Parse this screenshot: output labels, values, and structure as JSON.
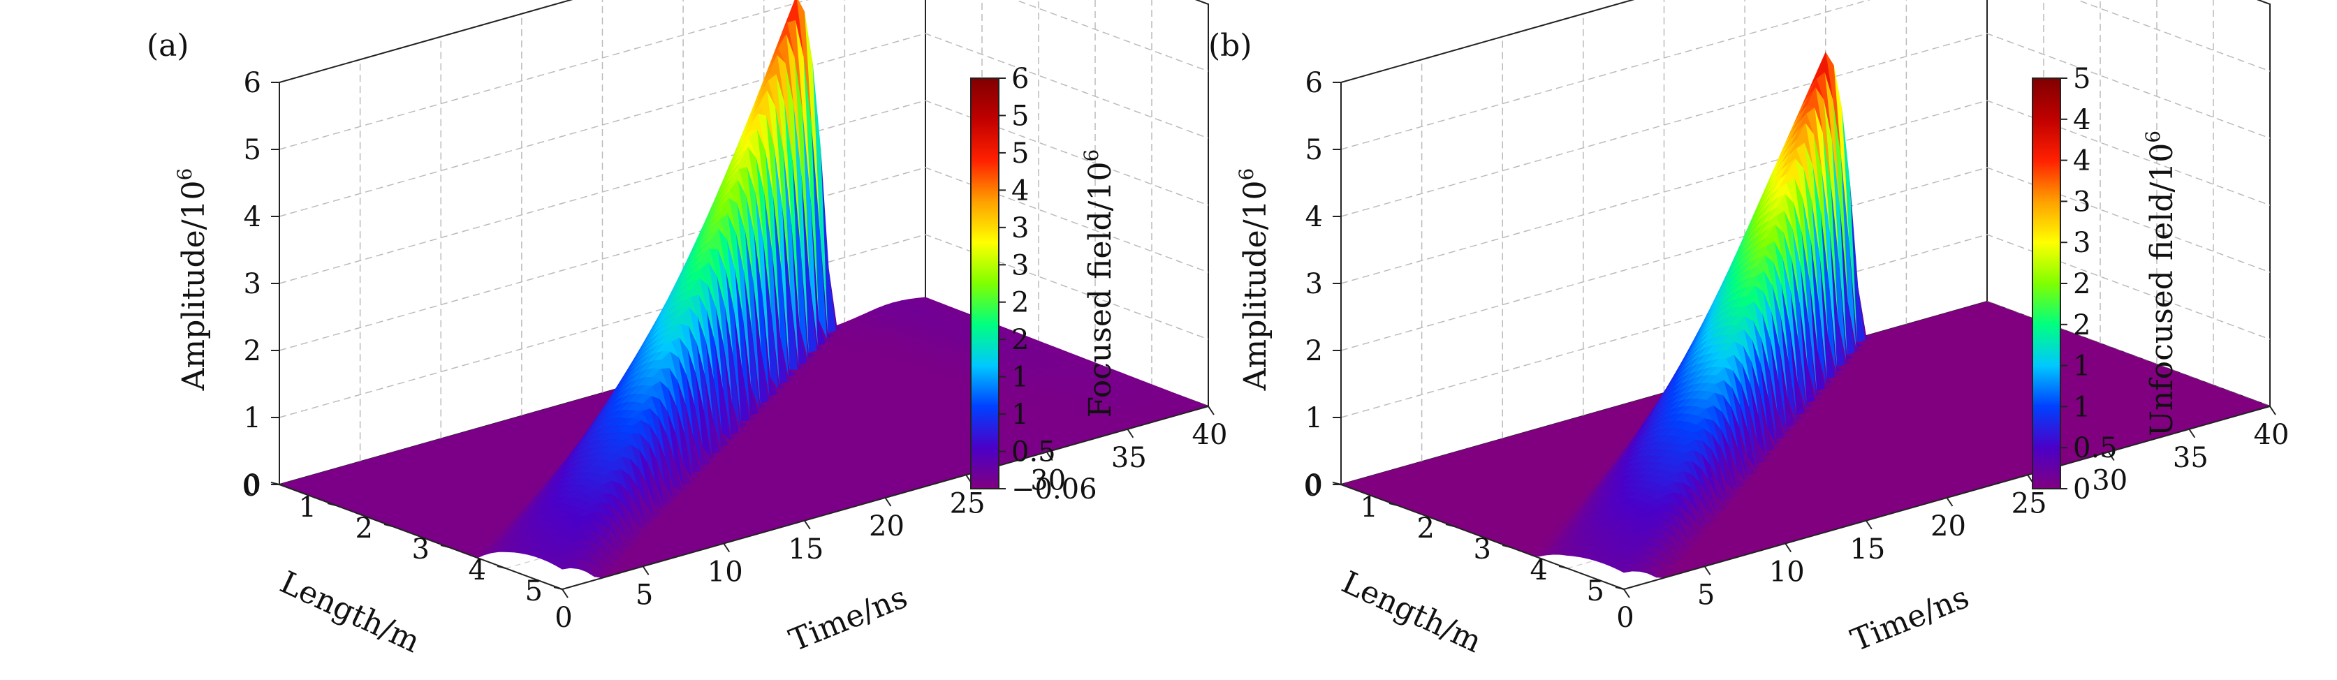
{
  "chart_data": [
    {
      "type": "surface3d",
      "panel_label": "(a)",
      "xlabel": "Time/ns",
      "ylabel": "Length/m",
      "zlabel": "Amplitude/10",
      "zlabel_sup": "6",
      "colorbar_label": "Focused field/10",
      "colorbar_sup": "6",
      "x_ticks": [
        "0",
        "5",
        "10",
        "15",
        "20",
        "25",
        "30",
        "35",
        "40"
      ],
      "y_ticks": [
        "0",
        "1",
        "2",
        "3",
        "4",
        "5"
      ],
      "z_ticks": [
        "0",
        "1",
        "2",
        "3",
        "4",
        "5",
        "6"
      ],
      "colorbar_ticks": [
        "6",
        "5",
        "5",
        "4",
        "3",
        "3",
        "2",
        "2",
        "1",
        "1",
        "0.5",
        "−0.06"
      ],
      "xlim": [
        0,
        40
      ],
      "ylim": [
        0,
        5
      ],
      "zlim": [
        0,
        6
      ],
      "colorbar_range": [
        -0.06,
        6
      ],
      "colormap": [
        "#800080",
        "#4b00c8",
        "#0040ff",
        "#00c8ff",
        "#00ff80",
        "#80ff00",
        "#ffff00",
        "#ffa000",
        "#ff2000",
        "#c00000",
        "#800000"
      ],
      "surface": {
        "description_ridge_length_m": [
          0,
          1,
          2,
          3,
          4,
          5
        ],
        "ridge_time_ns": [
          32,
          25.5,
          19,
          12.5,
          6,
          0
        ],
        "ridge_peak_amplitude": [
          5.1,
          3.6,
          2.4,
          1.4,
          0.7,
          0.3
        ],
        "secondary_bump_time_ns": 38,
        "secondary_bump_amplitude": 0.12
      }
    },
    {
      "type": "surface3d",
      "panel_label": "(b)",
      "xlabel": "Time/ns",
      "ylabel": "Length/m",
      "zlabel": "Amplitude/10",
      "zlabel_sup": "6",
      "colorbar_label": "Unfocused field/10",
      "colorbar_sup": "6",
      "x_ticks": [
        "0",
        "5",
        "10",
        "15",
        "20",
        "25",
        "30",
        "35",
        "40"
      ],
      "y_ticks": [
        "0",
        "1",
        "2",
        "3",
        "4",
        "5"
      ],
      "z_ticks": [
        "0",
        "1",
        "2",
        "3",
        "4",
        "5",
        "6"
      ],
      "colorbar_ticks": [
        "5",
        "4",
        "4",
        "3",
        "3",
        "2",
        "2",
        "1",
        "1",
        "0.5",
        "0"
      ],
      "xlim": [
        0,
        40
      ],
      "ylim": [
        0,
        5
      ],
      "zlim": [
        0,
        6
      ],
      "colorbar_range": [
        0,
        5
      ],
      "colormap": [
        "#800080",
        "#4b00c8",
        "#0040ff",
        "#00c8ff",
        "#00ff80",
        "#80ff00",
        "#ffff00",
        "#ffa000",
        "#ff2000",
        "#c00000",
        "#800000"
      ],
      "surface": {
        "description_ridge_length_m": [
          0,
          1,
          2,
          3,
          4,
          5
        ],
        "ridge_time_ns": [
          30,
          24,
          18,
          12,
          6,
          0
        ],
        "ridge_peak_amplitude": [
          4.4,
          3.0,
          1.9,
          1.1,
          0.55,
          0.25
        ]
      }
    }
  ]
}
